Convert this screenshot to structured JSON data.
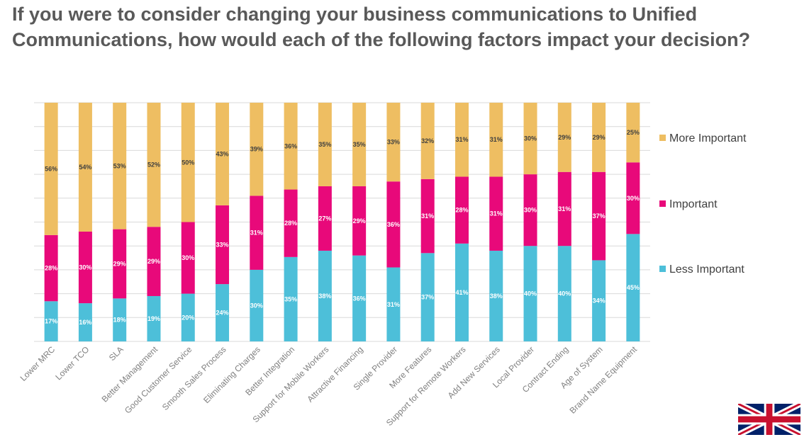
{
  "title": "If you were to consider changing your business communications to Unified Communications, how would each of the following factors impact your decision?",
  "colors": {
    "less": "#4DBFD9",
    "important": "#E8097A",
    "more": "#EEBE62",
    "grid": "#D9D9D9",
    "axis_text": "#808080",
    "label_dark": "#404040",
    "label_light": "#ffffff"
  },
  "flag_icon": "uk-flag-icon",
  "chart_data": {
    "type": "bar",
    "stacked": true,
    "normalized": true,
    "categories": [
      "Lower MRC",
      "Lower TCO",
      "SLA",
      "Better Management",
      "Good Customer Service",
      "Smooth Sales Process",
      "Eliminating Charges",
      "Better Integration",
      "Support for Mobile Workers",
      "Attractive Financing",
      "Single Provider",
      "More Features",
      "Support for Remote Workers",
      "Add New Services",
      "Local Provider",
      "Contract Ending",
      "Age of System",
      "Brand Name Equipment"
    ],
    "series": [
      {
        "name": "Less Important",
        "values": [
          17,
          16,
          18,
          19,
          20,
          24,
          30,
          35,
          38,
          36,
          31,
          37,
          41,
          38,
          40,
          40,
          34,
          45
        ]
      },
      {
        "name": "Important",
        "values": [
          28,
          30,
          29,
          29,
          30,
          33,
          31,
          28,
          27,
          29,
          36,
          31,
          28,
          31,
          30,
          31,
          37,
          30
        ]
      },
      {
        "name": "More Important",
        "values": [
          56,
          54,
          53,
          52,
          50,
          43,
          39,
          36,
          35,
          35,
          33,
          32,
          31,
          31,
          30,
          29,
          29,
          25
        ]
      }
    ],
    "data_label_suffix": "%",
    "legend": {
      "position": "right",
      "order": [
        "More Important",
        "Important",
        "Less Important"
      ]
    },
    "grid": true
  }
}
